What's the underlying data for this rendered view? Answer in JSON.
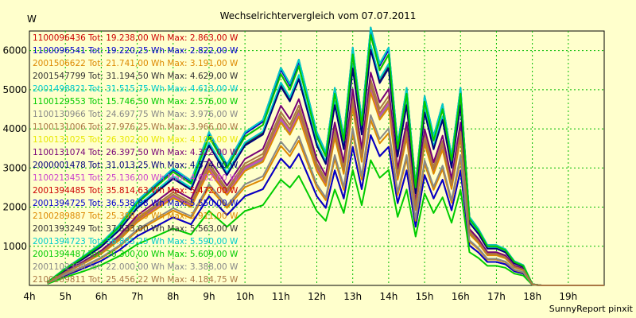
{
  "chart_data": {
    "type": "line",
    "title": "Wechselrichtervergleich vom 07.07.2011",
    "y_unit": "W",
    "footer": "SunnyReport pinxit",
    "xlim": [
      4,
      20
    ],
    "ylim": [
      0,
      6500
    ],
    "grid": true,
    "legend_position": "top-left inside plot",
    "x_ticks": [
      4,
      5,
      6,
      7,
      8,
      9,
      10,
      11,
      12,
      13,
      14,
      15,
      16,
      17,
      18,
      19
    ],
    "x_tick_labels": [
      "4h",
      "5h",
      "6h",
      "7h",
      "8h",
      "9h",
      "10h",
      "11h",
      "12h",
      "13h",
      "14h",
      "15h",
      "16h",
      "17h",
      "18h",
      "19h"
    ],
    "y_ticks": [
      1000,
      2000,
      3000,
      4000,
      5000,
      6000
    ],
    "y_tick_labels": [
      "1000",
      "2000",
      "3000",
      "4000",
      "5000",
      "6000"
    ],
    "x": [
      4.5,
      5,
      5.5,
      6,
      6.5,
      7,
      7.5,
      8,
      8.5,
      9,
      9.5,
      10,
      10.5,
      11,
      11.25,
      11.5,
      11.75,
      12,
      12.25,
      12.5,
      12.75,
      13,
      13.25,
      13.5,
      13.75,
      14,
      14.25,
      14.5,
      14.75,
      15,
      15.25,
      15.5,
      15.75,
      16,
      16.25,
      16.5,
      16.75,
      17,
      17.25,
      17.5,
      17.75,
      18,
      18.25,
      18.5,
      19,
      19.5,
      20
    ],
    "series": [
      {
        "name": "1100096436",
        "legend": "1100096436 Tot: 19.238,00 Wh Max: 2.863,00 W",
        "color": "#cc0000",
        "scale": 0.6
      },
      {
        "name": "1100096541",
        "legend": "1100096541 Tot: 19.220,25 Wh Max: 2.822,00 W",
        "color": "#0000cc",
        "scale": 0.6
      },
      {
        "name": "2001506622",
        "legend": "2001506622 Tot: 21.741,00 Wh Max: 3.191,00 W",
        "color": "#dd8800",
        "scale": 0.66
      },
      {
        "name": "2001547799",
        "legend": "2001547799 Tot: 31.194,50 Wh Max: 4.629,00 W",
        "color": "#333333",
        "scale": 0.95
      },
      {
        "name": "2001498821",
        "legend": "2001498821 Tot: 31.515,75 Wh Max: 4.613,00 W",
        "color": "#00cccc",
        "scale": 0.96
      },
      {
        "name": "1100129553",
        "legend": "1100129553 Tot: 15.746,50 Wh Max: 2.576,00 W",
        "color": "#00cc00",
        "scale": 0.5
      },
      {
        "name": "1100130966",
        "legend": "1100130966 Tot: 24.697,75 Wh Max: 3.976,00 W",
        "color": "#888888",
        "scale": 0.78
      },
      {
        "name": "1100131006",
        "legend": "1100131006 Tot: 27.976,25 Wh Max: 3.966,00 W",
        "color": "#aa7744",
        "scale": 0.82
      },
      {
        "name": "1100131025",
        "legend": "1100131025 Tot: 26.302,00 Wh Max: 4.102,00 W",
        "color": "#e8e800",
        "scale": 0.8
      },
      {
        "name": "1100131074",
        "legend": "1100131074 Tot: 26.397,50 Wh Max: 4.322,00 W",
        "color": "#770077",
        "scale": 0.85
      },
      {
        "name": "2000001478",
        "legend": "2000001478 Tot: 31.013,25 Wh Max: 4.574,00 W",
        "color": "#00007a",
        "scale": 0.94
      },
      {
        "name": "1100213451",
        "legend": "1100213451 Tot: 25.136,00 Wh Max: 4.002,00 W",
        "color": "#cc44cc",
        "scale": 0.79
      },
      {
        "name": "2001394485",
        "legend": "2001394485 Tot: 35.814,63 Wh Max: 5.472,00 W",
        "color": "#cc0000",
        "scale": 1.0
      },
      {
        "name": "2001394725",
        "legend": "2001394725 Tot: 36.538,88 Wh Max: 5.550,00 W",
        "color": "#0000cc",
        "scale": 1.02
      },
      {
        "name": "2100289887",
        "legend": "2100289887 Tot: 25.388,00 Wh Max: 3.911,00 W",
        "color": "#dd8800",
        "scale": 0.77
      },
      {
        "name": "2001393249",
        "legend": "2001393249 Tot: 37.533,00 Wh Max: 5.563,00 W",
        "color": "#333333",
        "scale": 1.03
      },
      {
        "name": "2001394723",
        "legend": "2001394723 Tot: 36.885,25 Wh Max: 5.590,00 W",
        "color": "#00cccc",
        "scale": 1.03
      },
      {
        "name": "2001394487",
        "legend": "2001394487 Tot: 36.300,00 Wh Max: 5.609,00 W",
        "color": "#00cc00",
        "scale": 1.0
      },
      {
        "name": "2001102358",
        "legend": "2001102358 Tot: 22.000,00 Wh Max: 3.388,00 W",
        "color": "#888888",
        "scale": 0.68
      },
      {
        "name": "2100289811",
        "legend": "2100289811 Tot: 25.456,22 Wh Max: 4.184,75 W",
        "color": "#aa7744",
        "scale": 0.8
      }
    ],
    "base_profile": [
      80,
      420,
      720,
      1050,
      1500,
      2100,
      2500,
      2900,
      2600,
      3800,
      3000,
      3800,
      4100,
      5400,
      5000,
      5600,
      4700,
      3800,
      3300,
      4900,
      3700,
      5900,
      4100,
      6400,
      5500,
      5900,
      3500,
      4900,
      2500,
      4700,
      3700,
      4500,
      3200,
      4900,
      1700,
      1400,
      1000,
      1000,
      900,
      600,
      500,
      30,
      0,
      0,
      0,
      0,
      0
    ]
  }
}
